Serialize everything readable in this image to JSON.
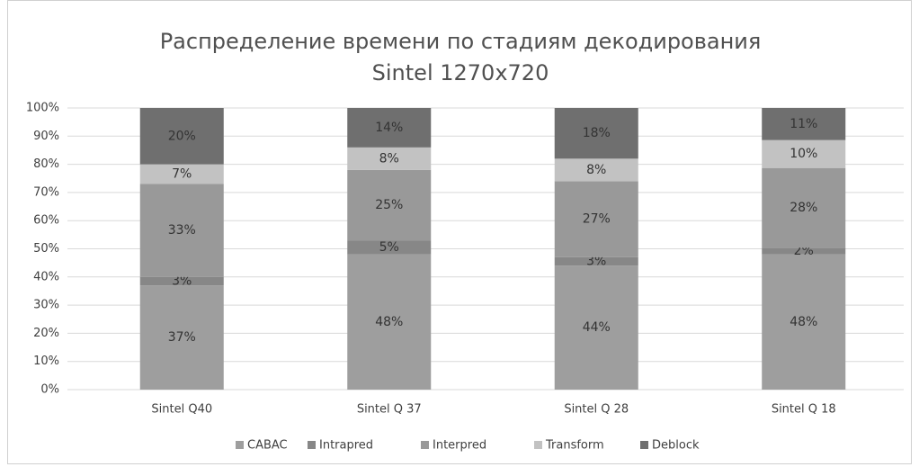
{
  "chart_data": {
    "type": "stacked_bar_100",
    "title": [
      "Распределение времени по стадиям декодирования",
      "Sintel 1270x720"
    ],
    "categories": [
      "Sintel Q40",
      "Sintel Q 37",
      "Sintel Q 28",
      "Sintel Q 18"
    ],
    "series": [
      {
        "name": "CABAC",
        "color": "#9e9e9e",
        "values": [
          37,
          48,
          44,
          48
        ],
        "value_labels": [
          "37%",
          "48%",
          "44%",
          "48%"
        ]
      },
      {
        "name": "Intrapred",
        "color": "#878787",
        "values": [
          3,
          5,
          3,
          2.4
        ],
        "value_labels": [
          "3%",
          "5%",
          "3%",
          "2%"
        ]
      },
      {
        "name": "Interpred",
        "color": "#999999",
        "values": [
          33,
          25,
          27,
          28.3
        ],
        "value_labels": [
          "33%",
          "25%",
          "27%",
          "28%"
        ]
      },
      {
        "name": "Transform",
        "color": "#c2c2c2",
        "values": [
          7,
          8,
          8,
          9.9
        ],
        "value_labels": [
          "7%",
          "8%",
          "8%",
          "10%"
        ]
      },
      {
        "name": "Deblock",
        "color": "#6f6f6f",
        "values": [
          20,
          14,
          18,
          11.4
        ],
        "value_labels": [
          "20%",
          "14%",
          "18%",
          "11%"
        ]
      }
    ],
    "ylim": [
      0,
      100
    ],
    "yticks": [
      {
        "value": 0,
        "label": "0%"
      },
      {
        "value": 10,
        "label": "10%"
      },
      {
        "value": 20,
        "label": "20%"
      },
      {
        "value": 30,
        "label": "30%"
      },
      {
        "value": 40,
        "label": "40%"
      },
      {
        "value": 50,
        "label": "50%"
      },
      {
        "value": 60,
        "label": "60%"
      },
      {
        "value": 70,
        "label": "70%"
      },
      {
        "value": 80,
        "label": "80%"
      },
      {
        "value": 90,
        "label": "90%"
      },
      {
        "value": 100,
        "label": "100%"
      }
    ],
    "grid": true,
    "legend": "bottom"
  }
}
